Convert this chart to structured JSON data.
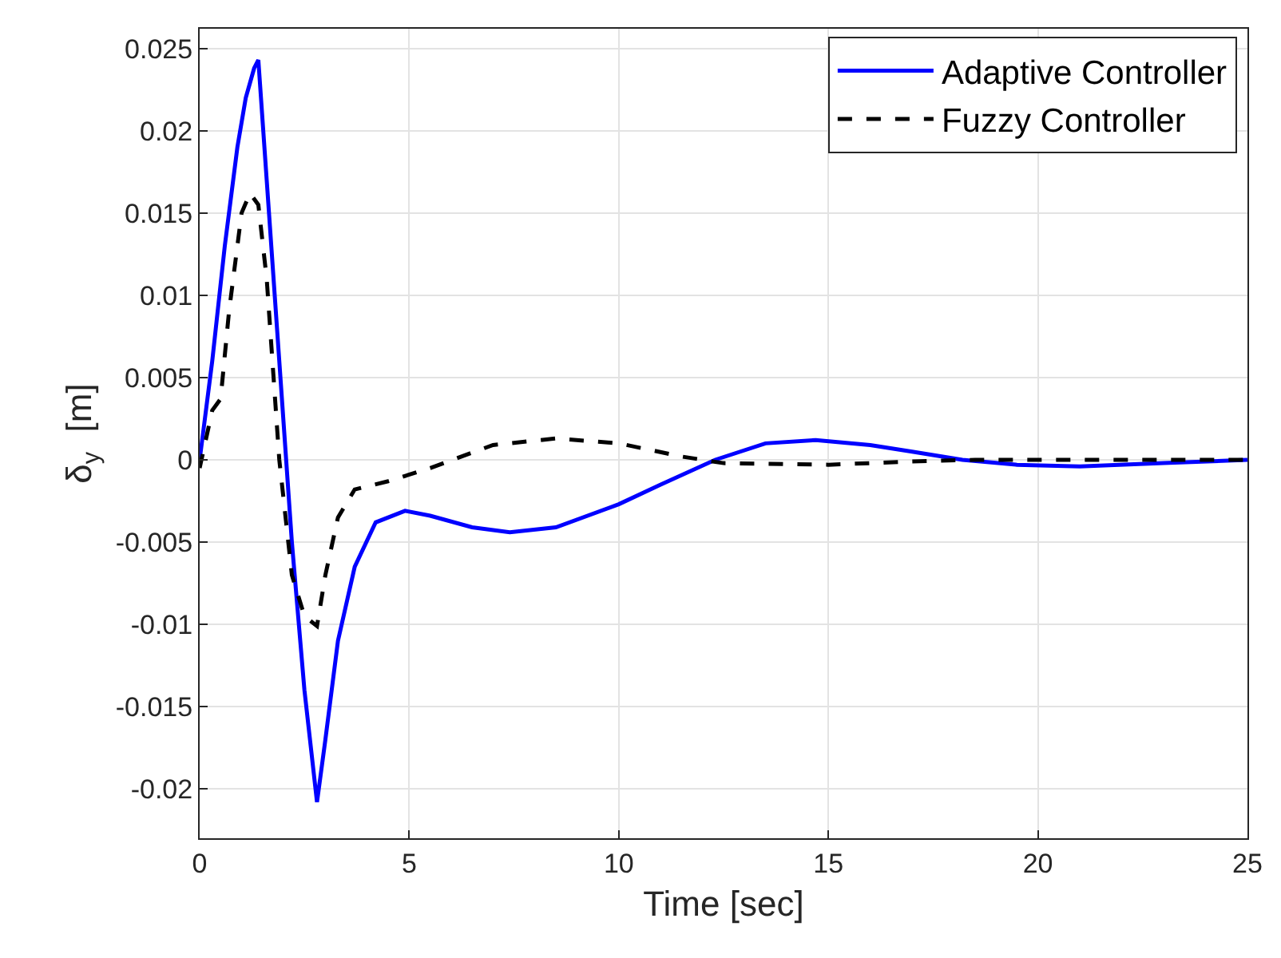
{
  "chart_data": {
    "type": "line",
    "xlabel": "Time [sec]",
    "ylabel": "δ$_{y}$  [m]",
    "xlim": [
      0,
      25
    ],
    "xticks": [
      0,
      5,
      10,
      15,
      20,
      25
    ],
    "ylim": [
      -0.023,
      0.0262
    ],
    "yticks": [
      -0.02,
      -0.015,
      -0.01,
      -0.005,
      0,
      0.005,
      0.01,
      0.015,
      0.02,
      0.025
    ],
    "grid": true,
    "legend": "top right",
    "marker": "none",
    "series": [
      {
        "name": "Adaptive Controller",
        "color": "#0000ff",
        "line_style": "solid",
        "x": [
          0,
          0.3,
          0.6,
          0.9,
          1.1,
          1.3,
          1.4,
          1.6,
          1.9,
          2.2,
          2.5,
          2.8,
          3.0,
          3.3,
          3.7,
          4.2,
          4.9,
          5.5,
          6.5,
          7.4,
          8.5,
          10,
          11,
          12.3,
          13.5,
          14.7,
          16,
          17,
          18.2,
          19.5,
          21,
          23,
          25
        ],
        "values": [
          0,
          0.006,
          0.013,
          0.019,
          0.022,
          0.0238,
          0.0243,
          0.017,
          0.006,
          -0.005,
          -0.014,
          -0.0208,
          -0.017,
          -0.011,
          -0.0065,
          -0.0038,
          -0.0031,
          -0.0034,
          -0.0041,
          -0.0044,
          -0.0041,
          -0.0027,
          -0.0015,
          0,
          0.001,
          0.0012,
          0.0009,
          0.0005,
          0,
          -0.0003,
          -0.0004,
          -0.0002,
          0
        ]
      },
      {
        "name": "Fuzzy Controller",
        "color": "#000000",
        "line_style": "dashed",
        "x": [
          0,
          0.3,
          0.5,
          0.7,
          1.0,
          1.2,
          1.4,
          1.6,
          1.9,
          2.2,
          2.5,
          2.8,
          3.0,
          3.3,
          3.7,
          4.5,
          5.5,
          7,
          8.5,
          10,
          11.5,
          12.5,
          15,
          17,
          18.5,
          25
        ],
        "values": [
          -0.0005,
          0.003,
          0.0037,
          0.009,
          0.015,
          0.0162,
          0.0155,
          0.011,
          0.0,
          -0.007,
          -0.0095,
          -0.0101,
          -0.007,
          -0.0035,
          -0.0018,
          -0.0013,
          -0.0005,
          0.0009,
          0.0013,
          0.001,
          0.0002,
          -0.0002,
          -0.0003,
          -0.0001,
          0,
          0
        ]
      }
    ]
  }
}
